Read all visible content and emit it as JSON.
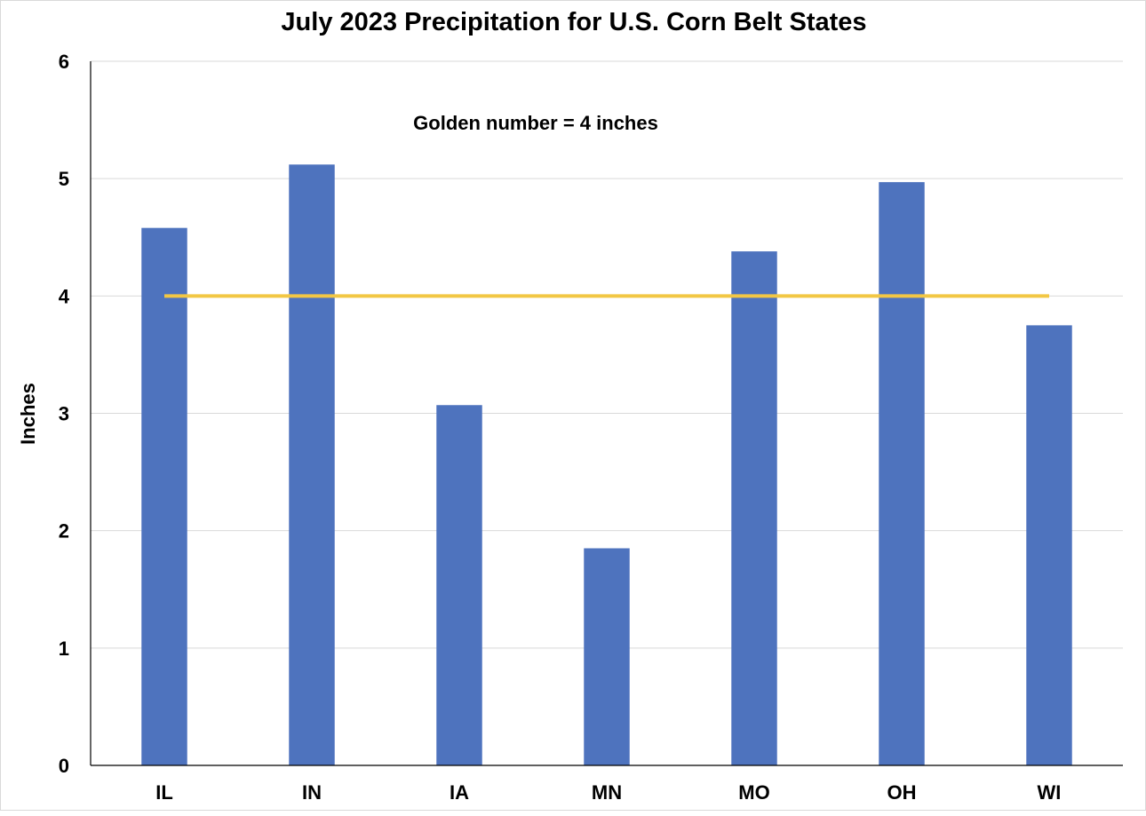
{
  "chart_data": {
    "type": "bar",
    "title": "July 2023 Precipitation for U.S. Corn Belt States",
    "xlabel": "",
    "ylabel": "Inches",
    "categories": [
      "IL",
      "IN",
      "IA",
      "MN",
      "MO",
      "OH",
      "WI"
    ],
    "values": [
      4.58,
      5.12,
      3.07,
      1.85,
      4.38,
      4.97,
      3.75
    ],
    "ylim": [
      0,
      6
    ],
    "yticks": [
      0,
      1,
      2,
      3,
      4,
      5,
      6
    ],
    "grid": true,
    "reference_line": {
      "value": 4,
      "label": "Golden number = 4 inches",
      "color": "#F2C744"
    },
    "bar_color": "#4E73BE",
    "legend": "none"
  }
}
